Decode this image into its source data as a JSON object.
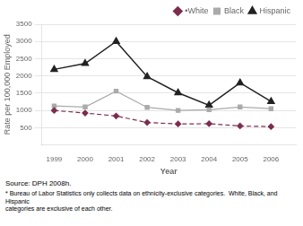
{
  "chart_data": {
    "type": "line",
    "x": [
      1999,
      2000,
      2001,
      2002,
      2003,
      2004,
      2005,
      2006
    ],
    "series": [
      {
        "name": "•White",
        "color": "#7b2d4e",
        "marker": "diamond",
        "line_style": "dashed",
        "values": [
          1000,
          925,
          840,
          650,
          610,
          615,
          550,
          530
        ]
      },
      {
        "name": "Black",
        "color": "#aaaaaa",
        "marker": "square",
        "line_style": "solid",
        "values": [
          1130,
          1100,
          1560,
          1090,
          1000,
          1020,
          1100,
          1050
        ]
      },
      {
        "name": "Hispanic",
        "color": "#222222",
        "marker": "triangle",
        "line_style": "solid",
        "values": [
          2190,
          2360,
          3000,
          1980,
          1510,
          1150,
          1800,
          1260
        ]
      }
    ],
    "x_label": "Year",
    "y_label": "Rate per 100,000 Employed",
    "xlim": [
      1998.6,
      2006.8
    ],
    "xticks": [
      1999,
      2000,
      2001,
      2002,
      2003,
      2004,
      2005,
      2006
    ],
    "ylim": [
      0,
      3500
    ],
    "yticks": [
      500,
      1000,
      1500,
      2000,
      2500,
      3000,
      3500
    ],
    "grid": "y",
    "legend": "upper right",
    "annotations": [
      "Source: DPH 2008h.",
      "* Bureau of Labor Statistics only collects data on ethnicity-exclusive categories.  White, Black, and Hispanic\ncategories are exclusive of each other."
    ]
  }
}
